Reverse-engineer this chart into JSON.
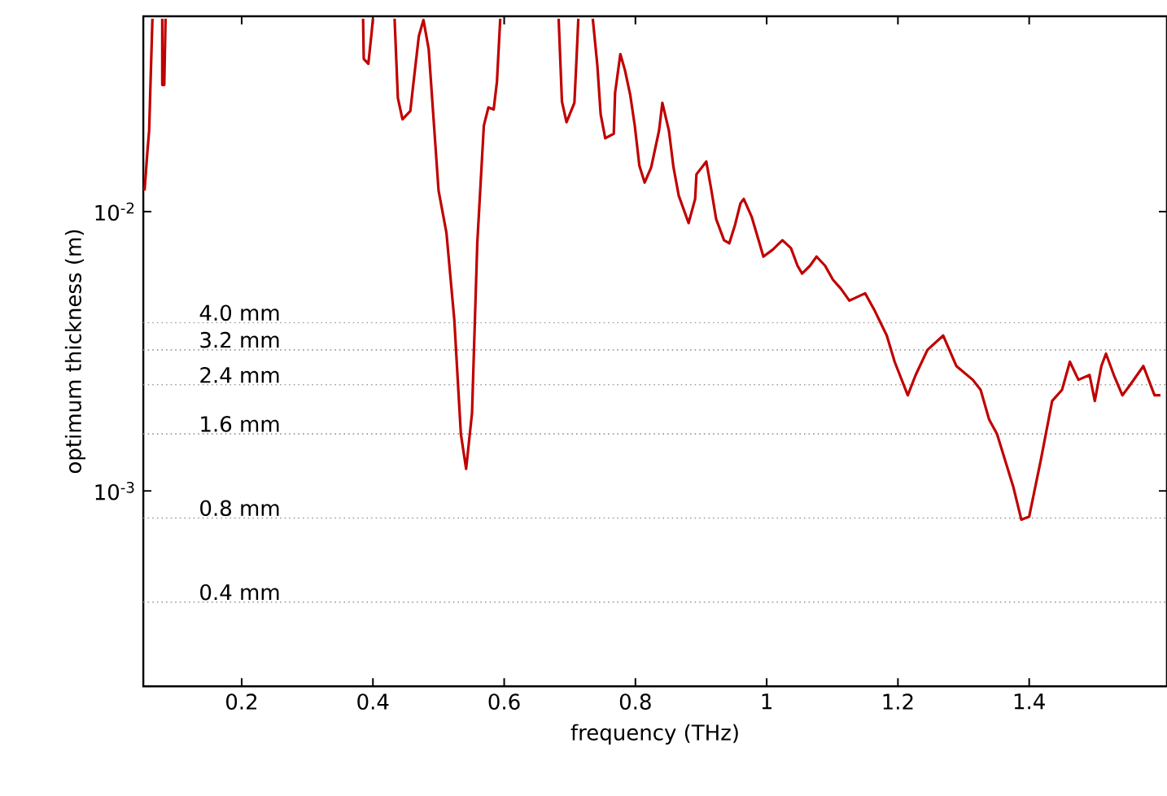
{
  "chart_data": {
    "type": "line",
    "xlabel": "frequency (THz)",
    "ylabel": "optimum thickness (m)",
    "log": "y",
    "xlim": [
      0.05,
      1.61
    ],
    "ylim": [
      0.0002,
      0.05
    ],
    "xticks": [
      0.2,
      0.4,
      0.6,
      0.8,
      1,
      1.2,
      1.4
    ],
    "yticks": [
      {
        "value": 0.01,
        "label": "10$^{-2}$"
      },
      {
        "value": 0.001,
        "label": "10$^{-3}$"
      }
    ],
    "line_style": "solid",
    "marker": "none",
    "ref_lines": [
      {
        "axis": "y",
        "value": 0.004,
        "label": "4.0 mm",
        "color": "#999999",
        "line_style": "dotted"
      },
      {
        "axis": "y",
        "value": 0.0032,
        "label": "3.2 mm",
        "color": "#999999",
        "line_style": "dotted"
      },
      {
        "axis": "y",
        "value": 0.0024,
        "label": "2.4 mm",
        "color": "#999999",
        "line_style": "dotted"
      },
      {
        "axis": "y",
        "value": 0.0016,
        "label": "1.6 mm",
        "color": "#999999",
        "line_style": "dotted"
      },
      {
        "axis": "y",
        "value": 0.0008,
        "label": "0.8 mm",
        "color": "#999999",
        "line_style": "dotted"
      },
      {
        "axis": "y",
        "value": 0.0004,
        "label": "0.4 mm",
        "color": "#999999",
        "line_style": "dotted"
      }
    ],
    "series": [
      {
        "color": "#c00000",
        "x": [
          0.052,
          0.056,
          0.059,
          0.061,
          0.064,
          0.07,
          0.079,
          0.079,
          0.082,
          0.084,
          0.2,
          0.385,
          0.386,
          0.393,
          0.398,
          0.4,
          0.42,
          0.433,
          0.438,
          0.445,
          0.457,
          0.462,
          0.47,
          0.477,
          0.485,
          0.5,
          0.512,
          0.524,
          0.534,
          0.542,
          0.551,
          0.559,
          0.569,
          0.576,
          0.584,
          0.589,
          0.594,
          0.64,
          0.683,
          0.688,
          0.695,
          0.707,
          0.71,
          0.713,
          0.72,
          0.735,
          0.742,
          0.747,
          0.754,
          0.767,
          0.769,
          0.777,
          0.784,
          0.792,
          0.799,
          0.806,
          0.814,
          0.824,
          0.836,
          0.841,
          0.851,
          0.858,
          0.866,
          0.881,
          0.891,
          0.893,
          0.908,
          0.915,
          0.923,
          0.935,
          0.943,
          0.952,
          0.96,
          0.965,
          0.977,
          0.987,
          0.995,
          1.009,
          1.024,
          1.037,
          1.047,
          1.054,
          1.066,
          1.076,
          1.089,
          1.101,
          1.113,
          1.126,
          1.15,
          1.165,
          1.183,
          1.195,
          1.215,
          1.227,
          1.245,
          1.269,
          1.289,
          1.314,
          1.326,
          1.339,
          1.351,
          1.376,
          1.388,
          1.4,
          1.418,
          1.435,
          1.45,
          1.462,
          1.475,
          1.492,
          1.5,
          1.51,
          1.517,
          1.529,
          1.542,
          1.554,
          1.574,
          1.591,
          1.6
        ],
        "values": [
          0.0119,
          0.016,
          0.0195,
          0.0284,
          0.049,
          null,
          0.049,
          0.0284,
          0.0284,
          0.049,
          null,
          0.049,
          0.0352,
          0.0338,
          0.0437,
          0.049,
          null,
          0.049,
          0.0255,
          0.0214,
          0.0229,
          0.0292,
          0.0425,
          0.0485,
          0.0381,
          0.0119,
          0.0084,
          0.0041,
          0.0016,
          0.0012,
          0.0019,
          0.0077,
          0.0203,
          0.0236,
          0.0232,
          0.0292,
          0.049,
          null,
          0.049,
          0.0248,
          0.0209,
          0.0245,
          0.0343,
          0.049,
          null,
          0.049,
          0.0333,
          0.0223,
          0.0183,
          0.019,
          0.0266,
          0.0366,
          0.0321,
          0.0262,
          0.0203,
          0.0146,
          0.0127,
          0.0144,
          0.0195,
          0.0245,
          0.0195,
          0.0144,
          0.0114,
          0.0091,
          0.0111,
          0.0136,
          0.0151,
          0.0122,
          0.0094,
          0.0079,
          0.0077,
          0.009,
          0.0107,
          0.0111,
          0.0096,
          0.008,
          0.0069,
          0.0073,
          0.0079,
          0.0074,
          0.0064,
          0.006,
          0.0064,
          0.0069,
          0.0064,
          0.0057,
          0.0053,
          0.0048,
          0.0051,
          0.0044,
          0.0036,
          0.0029,
          0.0022,
          0.0026,
          0.0032,
          0.0036,
          0.0028,
          0.0025,
          0.0023,
          0.0018,
          0.0016,
          0.00103,
          0.00079,
          0.00081,
          0.0013,
          0.0021,
          0.0023,
          0.0029,
          0.0025,
          0.0026,
          0.0021,
          0.0028,
          0.0031,
          0.0026,
          0.0022,
          0.0024,
          0.0028,
          0.0022,
          0.0022
        ]
      }
    ]
  }
}
